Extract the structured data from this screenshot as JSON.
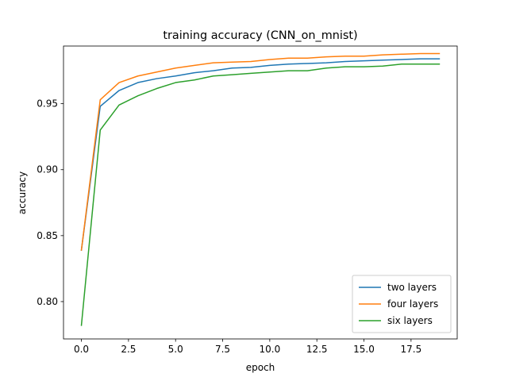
{
  "chart_data": {
    "type": "line",
    "title": "training accuracy (CNN_on_mnist)",
    "xlabel": "epoch",
    "ylabel": "accuracy",
    "xlim": [
      -0.95,
      19.95
    ],
    "ylim": [
      0.7717,
      0.9937
    ],
    "xticks": [
      0.0,
      2.5,
      5.0,
      7.5,
      10.0,
      12.5,
      15.0,
      17.5
    ],
    "xtick_labels": [
      "0.0",
      "2.5",
      "5.0",
      "7.5",
      "10.0",
      "12.5",
      "15.0",
      "17.5"
    ],
    "yticks": [
      0.8,
      0.85,
      0.9,
      0.95
    ],
    "ytick_labels": [
      "0.80",
      "0.85",
      "0.90",
      "0.95"
    ],
    "grid": false,
    "legend_position": "lower-right",
    "x": [
      0,
      1,
      2,
      3,
      4,
      5,
      6,
      7,
      8,
      9,
      10,
      11,
      12,
      13,
      14,
      15,
      16,
      17,
      18,
      19
    ],
    "series": [
      {
        "name": "two layers",
        "color": "#1f77b4",
        "values": [
          0.839,
          0.948,
          0.96,
          0.966,
          0.969,
          0.971,
          0.9735,
          0.975,
          0.977,
          0.9775,
          0.979,
          0.98,
          0.9805,
          0.981,
          0.982,
          0.9825,
          0.983,
          0.9835,
          0.984,
          0.984
        ]
      },
      {
        "name": "four layers",
        "color": "#ff7f0e",
        "values": [
          0.839,
          0.953,
          0.966,
          0.971,
          0.974,
          0.977,
          0.979,
          0.981,
          0.9815,
          0.982,
          0.9835,
          0.9845,
          0.9845,
          0.9855,
          0.986,
          0.986,
          0.987,
          0.9875,
          0.988,
          0.988
        ]
      },
      {
        "name": "six layers",
        "color": "#2ca02c",
        "values": [
          0.782,
          0.93,
          0.949,
          0.956,
          0.9615,
          0.966,
          0.968,
          0.971,
          0.972,
          0.973,
          0.974,
          0.975,
          0.975,
          0.977,
          0.978,
          0.978,
          0.9785,
          0.98,
          0.98,
          0.98
        ]
      }
    ]
  }
}
